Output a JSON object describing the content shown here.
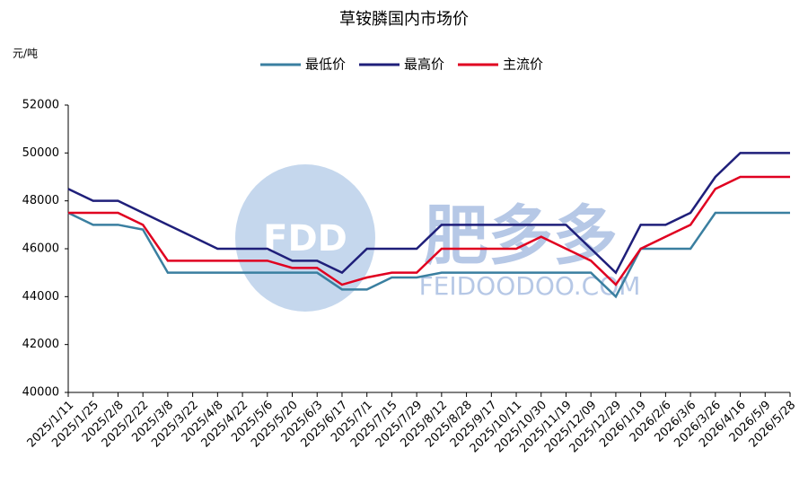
{
  "chart_data": {
    "type": "line",
    "title": "草铵膦国内市场价",
    "y_label": "元/吨",
    "watermark": {
      "logo": "FDD",
      "name": "肥多多",
      "site": "FEIDOODOO.COM"
    },
    "categories": [
      "2025/1/11",
      "2025/1/25",
      "2025/2/8",
      "2025/2/22",
      "2025/3/8",
      "2025/3/22",
      "2025/4/8",
      "2025/4/22",
      "2025/5/6",
      "2025/5/20",
      "2025/6/3",
      "2025/6/17",
      "2025/7/1",
      "2025/7/15",
      "2025/7/29",
      "2025/8/12",
      "2025/8/28",
      "2025/9/17",
      "2025/10/11",
      "2025/10/30",
      "2025/11/19",
      "2025/12/09",
      "2025/12/29",
      "2026/1/19",
      "2026/2/6",
      "2026/3/6",
      "2026/3/26",
      "2026/4/16",
      "2026/5/9",
      "2026/5/28"
    ],
    "series": [
      {
        "name": "最低价",
        "color": "#3a7fa0",
        "values": [
          47500,
          47000,
          47000,
          46800,
          45000,
          45000,
          45000,
          45000,
          45000,
          45000,
          45000,
          44300,
          44300,
          44800,
          44800,
          45000,
          45000,
          45000,
          45000,
          45000,
          45000,
          45000,
          44000,
          46000,
          46000,
          46000,
          47500,
          47500,
          47500,
          47500
        ]
      },
      {
        "name": "最高价",
        "color": "#1f1f7a",
        "values": [
          48500,
          48000,
          48000,
          47500,
          47000,
          46500,
          46000,
          46000,
          46000,
          45500,
          45500,
          45000,
          46000,
          46000,
          46000,
          47000,
          47000,
          47000,
          47000,
          47000,
          47000,
          46000,
          45000,
          47000,
          47000,
          47500,
          49000,
          50000,
          50000,
          50000
        ]
      },
      {
        "name": "主流价",
        "color": "#e00020",
        "values": [
          47500,
          47500,
          47500,
          47000,
          45500,
          45500,
          45500,
          45500,
          45500,
          45200,
          45200,
          44500,
          44800,
          45000,
          45000,
          46000,
          46000,
          46000,
          46000,
          46500,
          46000,
          45500,
          44500,
          46000,
          46500,
          47000,
          48500,
          49000,
          49000,
          49000
        ]
      }
    ],
    "ylim": [
      40000,
      52000
    ],
    "yticks": [
      40000,
      42000,
      44000,
      46000,
      48000,
      50000,
      52000
    ],
    "grid": false
  }
}
